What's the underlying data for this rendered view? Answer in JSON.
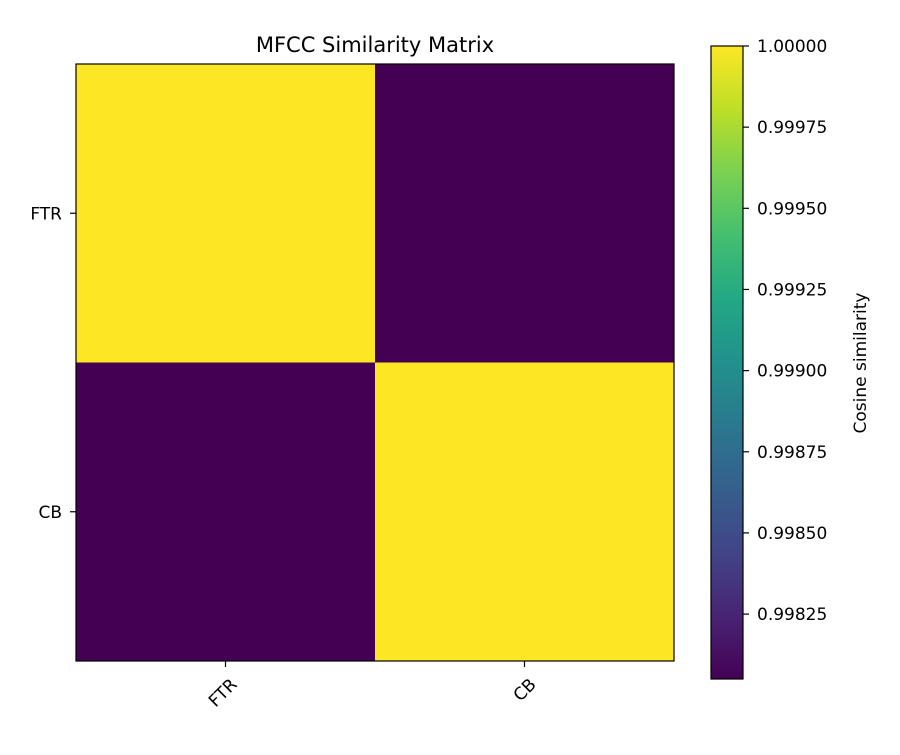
{
  "chart_data": {
    "type": "heatmap",
    "title": "MFCC Similarity Matrix",
    "x_categories": [
      "FTR",
      "CB"
    ],
    "y_categories": [
      "FTR",
      "CB"
    ],
    "values": [
      [
        1.0,
        0.99805
      ],
      [
        0.99805,
        1.0
      ]
    ],
    "colormap": "viridis",
    "colorbar": {
      "label": "Cosine similarity",
      "range": [
        0.99805,
        1.0
      ],
      "ticks": [
        1.0,
        0.99975,
        0.9995,
        0.99925,
        0.999,
        0.99875,
        0.9985,
        0.99825
      ],
      "tick_labels": [
        "1.00000",
        "0.99975",
        "0.99950",
        "0.99925",
        "0.99900",
        "0.99875",
        "0.99850",
        "0.99825"
      ]
    },
    "colors": {
      "high": "#fde725",
      "low": "#440154"
    }
  }
}
